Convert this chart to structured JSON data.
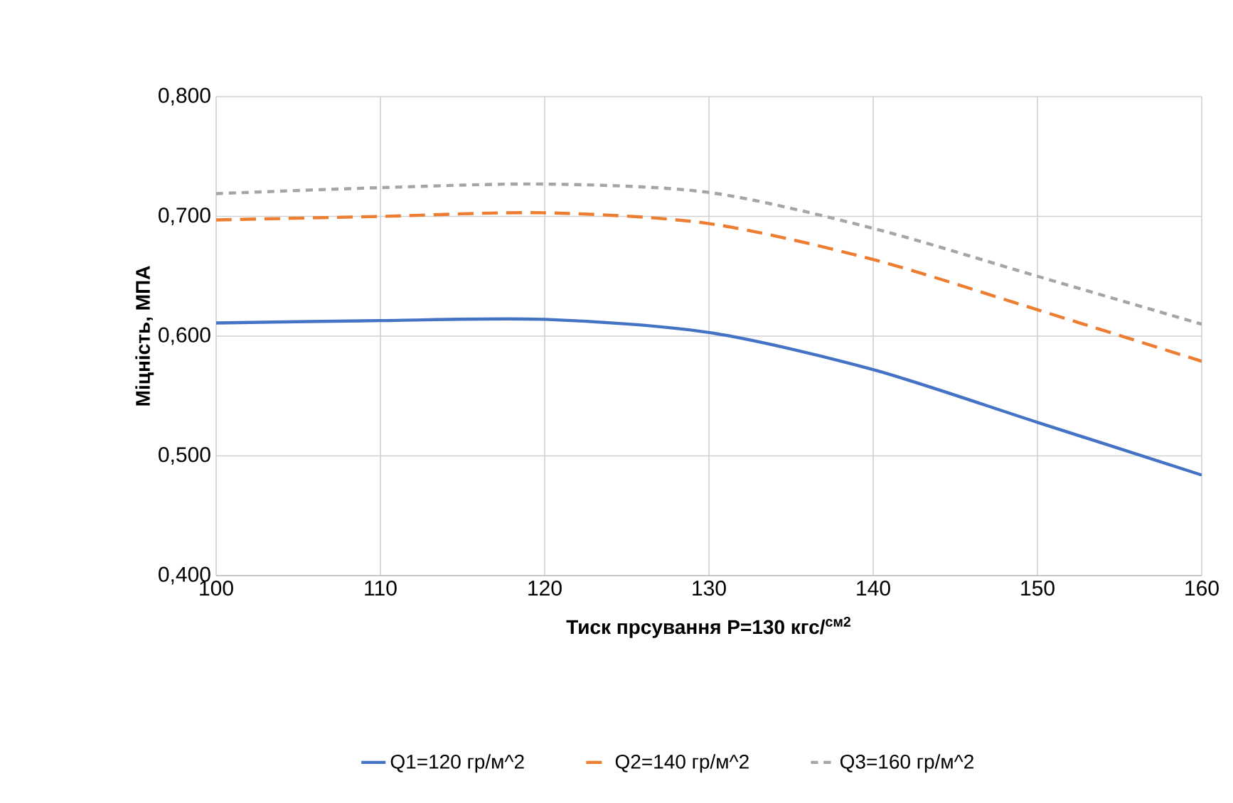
{
  "chart_data": {
    "type": "line",
    "xlabel": "Тиск прсування P=130 кгс/$^{см2}$",
    "ylabel": "Міцність, МПА",
    "x": [
      100,
      110,
      120,
      130,
      140,
      150,
      160
    ],
    "series": [
      {
        "name": "Q1=120 гр/м^2",
        "color": "#4472c4",
        "line_style": "solid",
        "values": [
          0.611,
          0.613,
          0.614,
          0.603,
          0.572,
          0.528,
          0.484
        ]
      },
      {
        "name": "Q2=140 гр/м^2",
        "color": "#ed7d31",
        "line_style": "dashed",
        "values": [
          0.697,
          0.7,
          0.703,
          0.694,
          0.664,
          0.622,
          0.579
        ]
      },
      {
        "name": "Q3=160 гр/м^2",
        "color": "#a5a5a5",
        "line_style": "dotted",
        "values": [
          0.719,
          0.724,
          0.727,
          0.72,
          0.69,
          0.65,
          0.61
        ]
      }
    ],
    "xlim": [
      100,
      160
    ],
    "xticks": [
      100,
      110,
      120,
      130,
      140,
      150,
      160
    ],
    "ylim": [
      0.4,
      0.8
    ],
    "yticks": [
      {
        "value": 0.4,
        "label": "0,400"
      },
      {
        "value": 0.5,
        "label": "0,500"
      },
      {
        "value": 0.6,
        "label": "0,600"
      },
      {
        "value": 0.7,
        "label": "0,700"
      },
      {
        "value": 0.8,
        "label": "0,800"
      }
    ],
    "grid": true,
    "legend": "bottom",
    "marker": "none"
  }
}
